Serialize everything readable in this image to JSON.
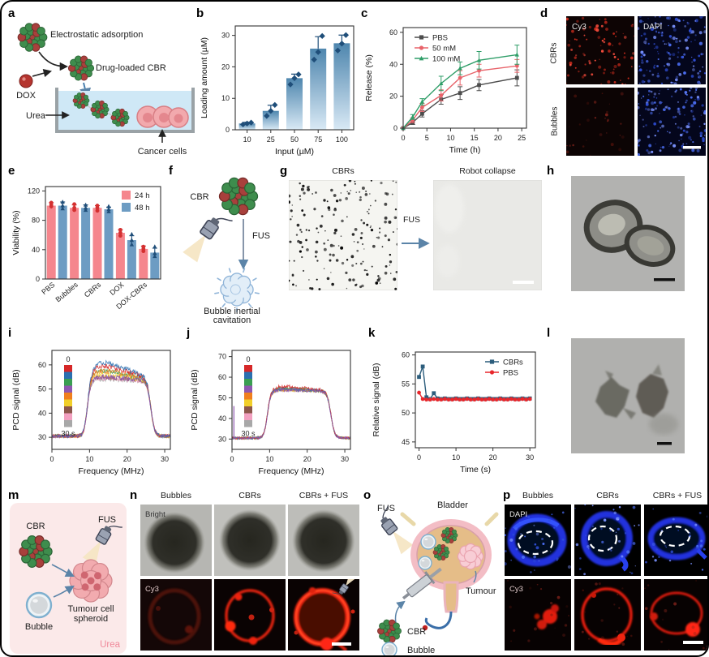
{
  "figure": {
    "background": "#ffffff",
    "border_color": "#000000"
  },
  "panels": {
    "a": {
      "label": "a",
      "electrostatic": "Electrostatic adsorption",
      "drug_loaded": "Drug-loaded CBR",
      "dox": "DOX",
      "urea": "Urea",
      "cancer_cells": "Cancer cells"
    },
    "b": {
      "label": "b"
    },
    "c": {
      "label": "c"
    },
    "d": {
      "label": "d",
      "col1": "Cy3",
      "col2": "DAPI",
      "row1": "CBRs",
      "row2": "Bubbles"
    },
    "e": {
      "label": "e"
    },
    "f": {
      "label": "f",
      "cbr": "CBR",
      "fus": "FUS",
      "caption_line1": "Bubble inertial",
      "caption_line2": "cavitation"
    },
    "g": {
      "label": "g",
      "left_title": "CBRs",
      "right_title": "Robot collapse",
      "arrow_label": "FUS"
    },
    "h": {
      "label": "h"
    },
    "i": {
      "label": "i"
    },
    "j": {
      "label": "j"
    },
    "k": {
      "label": "k"
    },
    "l": {
      "label": "l"
    },
    "m": {
      "label": "m",
      "cbr": "CBR",
      "fus": "FUS",
      "spheroid_line1": "Tumour cell",
      "spheroid_line2": "spheroid",
      "bubble": "Bubble",
      "urea": "Urea"
    },
    "n": {
      "label": "n",
      "cols": [
        "Bubbles",
        "CBRs",
        "CBRs + FUS"
      ],
      "row1": "Bright",
      "row2": "Cy3"
    },
    "o": {
      "label": "o",
      "fus": "FUS",
      "bladder": "Bladder",
      "tumour": "Tumour",
      "cbr": "CBR",
      "bubble": "Bubble"
    },
    "p": {
      "label": "p",
      "cols": [
        "Bubbles",
        "CBRs",
        "CBRs + FUS"
      ],
      "row1": "DAPI",
      "row2": "Cy3"
    }
  },
  "colors": {
    "bar_top": "#4e86ae",
    "bar_bottom": "#d9e9f5",
    "point_navy": "#1f4e79",
    "pbs_gray": "#4d4d4d",
    "mM50_red": "#e8636a",
    "mM100_green": "#2f9e68",
    "h24_pink": "#f5868d",
    "h48_blue": "#6d9cc3",
    "err_red": "#d43030",
    "k_cbrs_navy": "#2c5d7c",
    "k_pbs_red": "#e8272c"
  },
  "chart_data": [
    {
      "type": "bar",
      "panel": "b",
      "categories": [
        "10",
        "25",
        "50",
        "75",
        "100"
      ],
      "values": [
        2,
        6,
        16.4,
        25.8,
        27.5
      ],
      "errors": [
        0.4,
        1.8,
        1.3,
        3.8,
        2.6
      ],
      "points": [
        [
          1.7,
          2.0,
          2.3
        ],
        [
          4.4,
          6.0,
          7.9
        ],
        [
          14.4,
          16.4,
          17.6
        ],
        [
          22.3,
          24.7,
          29.8
        ],
        [
          25.2,
          27.4,
          30.1
        ]
      ],
      "xlabel": "Input (µM)",
      "ylabel": "Loading amount (µM)",
      "yticks": [
        0,
        10,
        20,
        30
      ],
      "ylim": [
        0,
        33
      ]
    },
    {
      "type": "line",
      "panel": "c",
      "x": [
        0,
        2,
        4,
        8,
        12,
        16,
        24
      ],
      "series": [
        {
          "name": "PBS",
          "marker": "square",
          "color": "#4d4d4d",
          "values": [
            0,
            3.5,
            9,
            18,
            22,
            27,
            31.5
          ],
          "errors": [
            0,
            1.2,
            2,
            3,
            4,
            3.5,
            5
          ]
        },
        {
          "name": "50 mM",
          "marker": "circle",
          "color": "#e8636a",
          "values": [
            0,
            5,
            13,
            20.5,
            31.5,
            36,
            39
          ],
          "errors": [
            0,
            1.5,
            2.5,
            3.5,
            4.5,
            4,
            4
          ]
        },
        {
          "name": "100 mM",
          "marker": "triangle",
          "color": "#2f9e68",
          "values": [
            0,
            7,
            16.5,
            28,
            37.5,
            42.5,
            46
          ],
          "errors": [
            0,
            1.5,
            2,
            4.5,
            4,
            5.5,
            6
          ]
        }
      ],
      "xlabel": "Time (h)",
      "ylabel": "Release (%)",
      "xticks": [
        0,
        5,
        10,
        15,
        20,
        25
      ],
      "yticks": [
        0,
        20,
        40,
        60
      ],
      "xlim": [
        0,
        26
      ],
      "ylim": [
        0,
        63
      ],
      "legend_position": "top-left"
    },
    {
      "type": "grouped_bar",
      "panel": "e",
      "categories": [
        "PBS",
        "Bubbles",
        "CBRs",
        "DOX",
        "DOX-CBRs"
      ],
      "series": [
        {
          "name": "24 h",
          "color": "#f5868d",
          "point_color": "#d43030",
          "marker": "circle",
          "values": [
            100,
            97,
            97,
            63,
            41
          ],
          "errors": [
            4,
            4,
            3,
            4,
            4
          ],
          "points": [
            [
              99,
              101,
              104
            ],
            [
              94,
              97,
              102
            ],
            [
              93,
              97,
              100
            ],
            [
              59,
              63,
              67
            ],
            [
              38,
              41,
              44
            ]
          ]
        },
        {
          "name": "48 h",
          "color": "#6d9cc3",
          "point_color": "#1f4e79",
          "marker": "triangle",
          "values": [
            100,
            97,
            95,
            53,
            36
          ],
          "errors": [
            5,
            4,
            3,
            6,
            6
          ],
          "points": [
            [
              96,
              100,
              105
            ],
            [
              94,
              97,
              101
            ],
            [
              92,
              95,
              99
            ],
            [
              47,
              53,
              61
            ],
            [
              31,
              35,
              44
            ]
          ]
        }
      ],
      "ylabel": "Viability (%)",
      "yticks": [
        0,
        40,
        80,
        120
      ],
      "ylim": [
        0,
        126
      ],
      "legend_position": "top-right"
    },
    {
      "type": "spectrum",
      "panel": "i",
      "xlabel": "Frequency (MHz)",
      "ylabel": "PCD signal (dB)",
      "xlim": [
        0,
        31.5
      ],
      "ylim": [
        25,
        66
      ],
      "xticks": [
        0,
        10,
        20,
        30
      ],
      "yticks": [
        30,
        40,
        50,
        60
      ],
      "baseline_db": 30.5,
      "band_mhz": [
        9.4,
        26.3
      ],
      "peak_mhz": 12.8,
      "plateau_db": 53.2,
      "trace_colors": [
        "#d62728",
        "#2a6fb0",
        "#3a9e52",
        "#8e57b0",
        "#f07f1e",
        "#f2cf2a",
        "#8c564b",
        "#f2a0c0",
        "#a8a8a8"
      ],
      "trace_peaks_db": [
        59.5,
        61,
        57.5,
        55,
        57.5,
        56,
        55,
        54.5,
        54
      ],
      "draw_order": [
        8,
        7,
        6,
        5,
        2,
        4,
        0,
        1,
        3
      ],
      "noise_db": 0.9,
      "seed": 11,
      "colorbar": {
        "top_label": "0",
        "bottom_label": "30 s"
      }
    },
    {
      "type": "spectrum",
      "panel": "j",
      "xlabel": "Frequency (MHz)",
      "ylabel": "PCD signal (dB)",
      "xlim": [
        0,
        31.5
      ],
      "ylim": [
        25,
        73
      ],
      "xticks": [
        0,
        10,
        20,
        30
      ],
      "yticks": [
        30,
        40,
        50,
        60,
        70
      ],
      "baseline_db": 30.5,
      "band_mhz": [
        9.4,
        26.3
      ],
      "peak_mhz": 13.2,
      "plateau_db": 53.0,
      "trace_colors": [
        "#d62728",
        "#2a6fb0",
        "#3a9e52",
        "#8e57b0",
        "#f07f1e",
        "#f2cf2a",
        "#8c564b",
        "#f2a0c0",
        "#a8a8a8"
      ],
      "trace_peaks_db": [
        55.5,
        54.3,
        54.6,
        53.8,
        54.1,
        53.9,
        54.0,
        53.8,
        53.7
      ],
      "draw_order": [
        8,
        7,
        6,
        5,
        4,
        2,
        1,
        0,
        3
      ],
      "noise_db": 0.7,
      "seed": 23,
      "spike": {
        "x": 0.5,
        "top_db": 46
      },
      "colorbar": {
        "top_label": "0",
        "bottom_label": "30 s"
      }
    },
    {
      "type": "line",
      "panel": "k",
      "x": [
        0,
        1,
        2,
        3,
        4,
        5,
        6,
        7,
        8,
        9,
        10,
        11,
        12,
        13,
        14,
        15,
        16,
        17,
        18,
        19,
        20,
        21,
        22,
        23,
        24,
        25,
        26,
        27,
        28,
        29,
        30
      ],
      "series": [
        {
          "name": "CBRs",
          "marker": "square",
          "color": "#2c5d7c",
          "values": [
            56.2,
            58.0,
            52.7,
            52.4,
            53.4,
            52.5,
            52.4,
            52.5,
            52.4,
            52.4,
            52.5,
            52.4,
            52.4,
            52.5,
            52.4,
            52.4,
            52.5,
            52.4,
            52.4,
            52.5,
            52.4,
            52.4,
            52.5,
            52.4,
            52.4,
            52.5,
            52.4,
            52.4,
            52.5,
            52.4,
            52.5
          ]
        },
        {
          "name": "PBS",
          "marker": "circle",
          "color": "#e8272c",
          "values": [
            53.5,
            52.4,
            52.3,
            52.3,
            52.4,
            52.3,
            52.3,
            52.4,
            52.3,
            52.3,
            52.4,
            52.3,
            52.3,
            52.4,
            52.3,
            52.3,
            52.4,
            52.3,
            52.3,
            52.4,
            52.3,
            52.3,
            52.4,
            52.3,
            52.3,
            52.4,
            52.3,
            52.3,
            52.4,
            52.3,
            52.4
          ]
        }
      ],
      "xlabel": "Time (s)",
      "ylabel": "Relative signal (dB)",
      "xticks": [
        0,
        10,
        20,
        30
      ],
      "yticks": [
        45,
        50,
        55,
        60
      ],
      "xlim": [
        -1,
        31.5
      ],
      "ylim": [
        44,
        60.5
      ],
      "legend_position": "top-right"
    }
  ]
}
